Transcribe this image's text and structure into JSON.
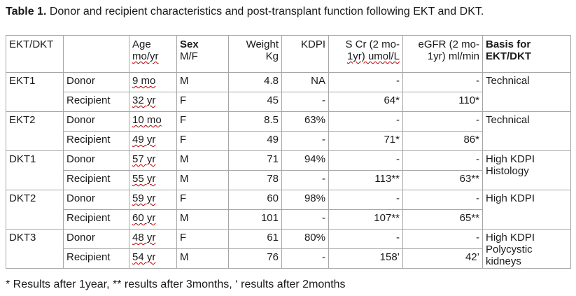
{
  "caption": {
    "label": "Table 1.",
    "text": " Donor and recipient characteristics and post-transplant function following EKT and DKT."
  },
  "headers": {
    "group": "EKT/DKT",
    "role": "",
    "age_line1": "Age",
    "age_line2": "mo/yr",
    "sex_line1": "Sex",
    "sex_line2": "M/F",
    "weight_line1": "Weight",
    "weight_line2": "Kg",
    "kdpi": "KDPI",
    "scr_line1": "S Cr (2 mo-",
    "scr_line2": "1yr) umol/L",
    "egfr_line1": "eGFR (2 mo-",
    "egfr_line2": "1yr) ml/min",
    "basis_line1": "Basis for",
    "basis_line2": "EKT/DKT"
  },
  "groups": [
    {
      "name": "EKT1",
      "basis_line1": "Technical",
      "basis_line2": "",
      "rows": [
        {
          "role": "Donor",
          "age": "9 mo",
          "sex": "M",
          "weight": "4.8",
          "kdpi": "NA",
          "scr": "-",
          "egfr": "-"
        },
        {
          "role": "Recipient",
          "age": "32 yr",
          "sex": "F",
          "weight": "45",
          "kdpi": "-",
          "scr": "64*",
          "egfr": "110*"
        }
      ]
    },
    {
      "name": "EKT2",
      "basis_line1": "Technical",
      "basis_line2": "",
      "rows": [
        {
          "role": "Donor",
          "age": "10 mo",
          "sex": "F",
          "weight": "8.5",
          "kdpi": "63%",
          "scr": "-",
          "egfr": "-"
        },
        {
          "role": "Recipient",
          "age": "49 yr",
          "sex": "F",
          "weight": "49",
          "kdpi": "-",
          "scr": "71*",
          "egfr": "86*"
        }
      ]
    },
    {
      "name": "DKT1",
      "basis_line1": "High KDPI",
      "basis_line2": "Histology",
      "rows": [
        {
          "role": "Donor",
          "age": "57 yr",
          "sex": "M",
          "weight": "71",
          "kdpi": "94%",
          "scr": "-",
          "egfr": "-"
        },
        {
          "role": "Recipient",
          "age": "55 yr",
          "sex": "M",
          "weight": "78",
          "kdpi": "-",
          "scr": "113**",
          "egfr": "63**"
        }
      ]
    },
    {
      "name": "DKT2",
      "basis_line1": "High KDPI",
      "basis_line2": "",
      "rows": [
        {
          "role": "Donor",
          "age": "59 yr",
          "sex": "F",
          "weight": "60",
          "kdpi": "98%",
          "scr": "-",
          "egfr": "-"
        },
        {
          "role": "Recipient",
          "age": "60 yr",
          "sex": "M",
          "weight": "101",
          "kdpi": "-",
          "scr": "107**",
          "egfr": "65**"
        }
      ]
    },
    {
      "name": "DKT3",
      "basis_line1": "High KDPI",
      "basis_line2": "Polycystic kidneys",
      "rows": [
        {
          "role": "Donor",
          "age": "48 yr",
          "sex": "F",
          "weight": "61",
          "kdpi": "80%",
          "scr": "-",
          "egfr": "-"
        },
        {
          "role": "Recipient",
          "age": "54 yr",
          "sex": "M",
          "weight": "76",
          "kdpi": "-",
          "scr": "158’",
          "egfr": "42’"
        }
      ]
    }
  ],
  "footnote": "* Results after 1year, ** results after 3months, ‘ results after 2months"
}
